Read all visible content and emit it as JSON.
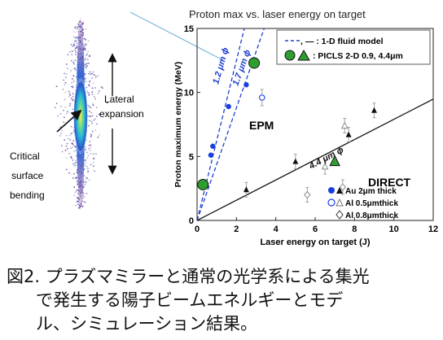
{
  "figure": {
    "left_labels": {
      "lateral": [
        "Lateral",
        "expansion"
      ],
      "critical": [
        "Critical",
        "surface",
        "bending"
      ]
    }
  },
  "chart_data": {
    "type": "scatter",
    "title": "Proton max vs. laser energy on target",
    "xlabel": "Laser energy on target (J)",
    "ylabel": "Proton maximum energy (MeV)",
    "xlim": [
      0,
      12
    ],
    "ylim": [
      0,
      15
    ],
    "xticks": [
      "0",
      "2",
      "4",
      "6",
      "8",
      "10",
      "12"
    ],
    "yticks": [
      "0",
      "5",
      "10",
      "15"
    ],
    "grid": false,
    "legend_top": {
      "position": "top-right",
      "entries": [
        {
          "marker": "dashed-and-solid-line",
          "label": ", — : 1-D fluid model"
        },
        {
          "marker": "green-circle-and-triangle",
          "label": ": PICLS 2-D 0.9, 4.4μm"
        }
      ]
    },
    "legend_bottom": {
      "position": "bottom-right",
      "entries": [
        {
          "marker": "filled-circle-triangle",
          "label": "Au 2μm thick"
        },
        {
          "marker": "open-circle-triangle",
          "label": "Al 0.5μmthick"
        },
        {
          "marker": "open-diamond",
          "label": "Al 0.8μmthick"
        }
      ]
    },
    "models": [
      {
        "label": "1.2 μm ϕ",
        "style": "dashed",
        "color": "#1f3fd0",
        "slope": 6.25
      },
      {
        "label": "1.7 μm ϕ",
        "style": "dashed",
        "color": "#1f3fd0",
        "slope": 4.4
      },
      {
        "label": "4.4 μm ϕ",
        "style": "solid",
        "color": "#111111",
        "slope": 0.79
      }
    ],
    "region_labels": [
      {
        "text": "EPM",
        "color": "#1a4fd8"
      },
      {
        "text": "DIRECT",
        "color": "#111111"
      }
    ],
    "series": [
      {
        "group": "EPM",
        "marker": "filled-circle",
        "color": "#1a3fe0",
        "points": [
          [
            0.7,
            5.1
          ],
          [
            0.8,
            5.8
          ],
          [
            1.6,
            8.9
          ],
          [
            2.5,
            10.6
          ]
        ]
      },
      {
        "group": "EPM",
        "marker": "open-circle",
        "color": "#1a3fe0",
        "points": [
          [
            3.3,
            9.6
          ]
        ]
      },
      {
        "group": "PIC",
        "marker": "green-circle",
        "color": "#2f9e2f",
        "points": [
          [
            0.3,
            2.8
          ],
          [
            2.9,
            12.3
          ]
        ]
      },
      {
        "group": "PIC",
        "marker": "green-triangle",
        "color": "#2f9e2f",
        "points": [
          [
            7.0,
            4.6
          ]
        ]
      },
      {
        "group": "DIRECT",
        "marker": "filled-triangle",
        "color": "#111111",
        "points": [
          [
            2.5,
            2.4
          ],
          [
            5.0,
            4.6
          ],
          [
            7.7,
            6.7
          ],
          [
            9.0,
            8.6
          ]
        ]
      },
      {
        "group": "DIRECT",
        "marker": "open-triangle",
        "color": "#888888",
        "points": [
          [
            6.5,
            4.2
          ],
          [
            7.5,
            7.4
          ]
        ]
      },
      {
        "group": "DIRECT",
        "marker": "open-diamond",
        "color": "#888888",
        "points": [
          [
            5.6,
            2.0
          ],
          [
            7.4,
            2.6
          ]
        ]
      }
    ]
  },
  "caption": {
    "line1": "図2. プラズマミラーと通常の光学系による集光",
    "line2": "で発生する陽子ビームエネルギーとモデ",
    "line3": "ル、シミュレーション結果。"
  }
}
